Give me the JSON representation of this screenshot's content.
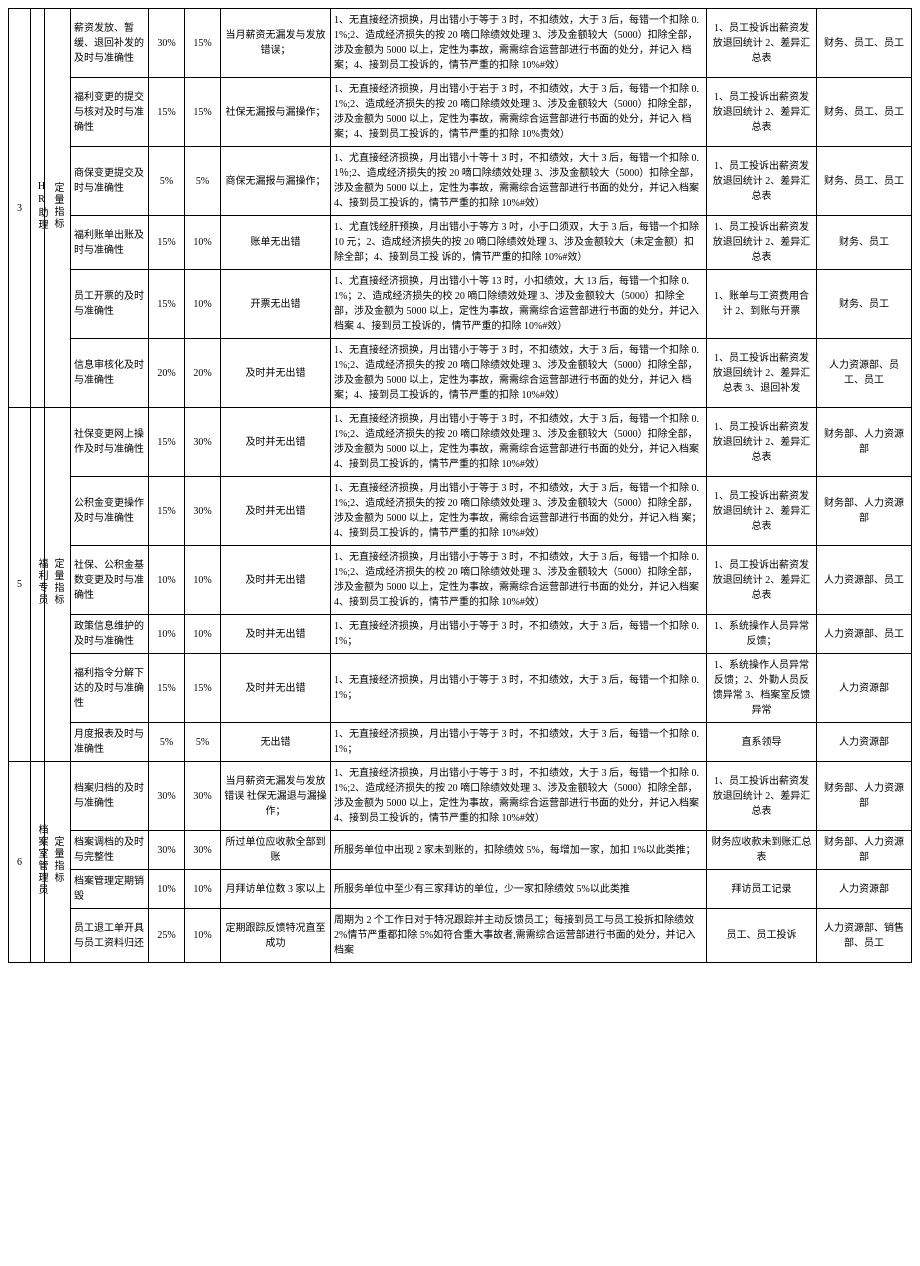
{
  "sections": [
    {
      "num": "3",
      "role": "HR助理",
      "type": "定量指标",
      "rows": [
        {
          "kpi": "薪资发放、暂缓、退回补发的及时与准确性",
          "w1": "30%",
          "w2": "15%",
          "std": "当月薪资无漏发与发放错误；",
          "rule": "1、无直接经济损换，月出错小于等于 3 时，不扣绩效，大于 3 后，每错一个扣除 0.1%;2、造成经济损失的按 20 嘀口除绩效处理 3、涉及金额较大（5000）扣除全部，涉及金额为 5000 以上，定性为事故，需需综合运营部进行书面的处分，并记入\n档案；4、接到员工投诉的，情节严重的扣除 10%#效）",
          "src": "1、员工投诉出薪资发放退回统计 2、差异汇总表",
          "dep": "财务、员工、员工"
        },
        {
          "kpi": "福利变更的提交与核对及时与准确性",
          "w1": "15%",
          "w2": "15%",
          "std": "社保无漏报与漏操作；",
          "rule": "1、无直接经济损换，月出错小于岩于 3 时，不扣绩效，大于 3 后，每错一个扣除 0.1%;2、造成经济损失的按 20 嘀口除绩效处理 3、涉及金额较大（5000）扣除全部，涉及金额为 5000 以上，定性为事故，需需综合运营部进行书面的处分，并记入\n档案；4、接到员工投诉的，情节严重的扣除 10%责效）",
          "src": "1、员工投诉出薪资发放退回统计 2、差异汇总表",
          "dep": "财务、员工、员工"
        },
        {
          "kpi": "商保变更提交及时与准确性",
          "w1": "5%",
          "w2": "5%",
          "std": "商保无漏报与漏操作；",
          "rule": "1、尤直接经济损换，月出错小十等十 3 时，不扣绩效，大十 3 后，每错一个扣除 0.1％;2、造成经济损失的按 20 嘀口除绩效处理 3、涉及金额较大（5000）扣除全部，涉及金额为 5000 以上，定性为事故，需需综合运营部进行书面的处分，并记入档案 4、接到员工投诉的，情节严重的扣除 10%#效）",
          "src": "1、员工投诉出薪资发放退回统计 2、差异汇总表",
          "dep": "财务、员工、员工"
        },
        {
          "kpi": "福利账单出账及时与准确性",
          "w1": "15%",
          "w2": "10%",
          "std": "账单无出错",
          "rule": "1、尤直饯经肝预换，月出错小于等方 3 吋，小于口须双，大于 3 后，每错一个扣除 10 元；2、造成经济损失的按 20 嘀口除绩效处理 3、涉及金额较大（未定金额）扣除全部；4、接到员工投\n诉的，情节严重的扣除 10%#效）",
          "src": "1、员工投诉出薪资发放退回统计 2、差异汇总表",
          "dep": "财务、员工"
        },
        {
          "kpi": "员工开票的及时与准确性",
          "w1": "15%",
          "w2": "10%",
          "std": "开票无出错",
          "rule": "1、尤直接经济损换，月出错小十等 13 时，小扣绩效，大 13 后，每错一个扣除 0.1%；2、造成经济损失的校 20 嘀口除绩效处理 3、涉及金额较大（5000）扣除全部，涉及金额为 5000 以上，定性为事故，需需综合运营部进行书面的处分，并记入档案 4、接到员工投诉的，情节严重的扣除 10%#效）",
          "src": "1、账单与工资费用合计 2、到账与开票",
          "dep": "财务、员工"
        },
        {
          "kpi": "信息审核化及时与准确性",
          "w1": "20%",
          "w2": "20%",
          "std": "及时并无出错",
          "rule": "1、无直接经济损换，月出错小于等于 3 时，不扣绩效，大于 3 后，每错一个扣除 0.1%;2、造成经济损失的按 20 嘀口除绩效处理 3、涉及金额较大（5000）扣除全部，涉及金额为 5000 以上，定性为事故，需需综合运营部进行书面的处分，并记入\n档案；4、接到员工投诉的，情节严重的扣除 10%#效）",
          "src": "1、员工投诉出薪资发放退回统计 2、差异汇总表\n3、退回补发",
          "dep": "人力资源部、员工、员工"
        }
      ]
    },
    {
      "num": "5",
      "role": "福利专员",
      "type": "定量指标",
      "rows": [
        {
          "kpi": "社保变更网上操作及时与准确性",
          "w1": "15%",
          "w2": "30%",
          "std": "及时并无出错",
          "rule": "1、无直接经济损换，月出错小于等于 3 时，不扣绩效，大于 3 后，每错一个扣除 0.1%;2、造成经济损失的按 20 嘀口除绩效处理 3、涉及金额较大（5000）扣除全部，涉及金额为 5000 以上，定性为事故，需需综合运营部进行书面的处分，并记入档案 4、接到员工投诉的，情节严重的扣除 10%#效）",
          "src": "1、员工投诉出薪资发放退回统计 2、差异汇总表",
          "dep": "财务部、人力资源部"
        },
        {
          "kpi": "公积金变更操作及时与准确性",
          "w1": "15%",
          "w2": "30%",
          "std": "及时并无出错",
          "rule": "1、无直接经济损换，月出错小于等于 3 时，不扣绩效，大于 3 后，每错一个扣除 0.1%;2、造成经济损失的按 20 嘀口除绩效处理 3、涉及金额较大（5000）扣除全部，涉及金额为 5000 以上，定性为事故，需综合运营部进行书面的处分，并记入档\n案；4、接到员工投诉的，情节严重的扣除 10%#效）",
          "src": "1、员工投诉出薪资发放退回统计 2、差异汇总表",
          "dep": "财务部、人力资源部"
        },
        {
          "kpi": "社保、公积金基数变更及时与准确性",
          "w1": "10%",
          "w2": "10%",
          "std": "及时并无出错",
          "rule": "1、无直接经济损换，月出错小于等于 3 时，不扣绩效，大于 3 后，每错一个扣除 0.1%;2、造成经济损失的校 20 嘀口除绩效处理 3、涉及金额较大（5000）扣除全部，涉及金额为 5000 以上，定性为事故，需需综合运营部进行书面的处分，并记入档案 4、接到员工投诉的，情节严重的扣除 10%#效）",
          "src": "1、员工投诉出薪资发放退回统计 2、差异汇总表",
          "dep": "人力资源部、员工"
        },
        {
          "kpi": "政策信息维护的及时与准确性",
          "w1": "10%",
          "w2": "10%",
          "std": "及时并无出错",
          "rule": "1、无直接经济损换，月出错小于等于 3 时，不扣绩效，大于 3 后，每错一个扣除 0.1%；",
          "src": "1、系统操作人员异常反馈；",
          "dep": "人力资源部、员工"
        },
        {
          "kpi": "福利指令分解下达的及时与准确性",
          "w1": "15%",
          "w2": "15%",
          "std": "及时并无出错",
          "rule": "1、无直接经济损换，月出错小于等于 3 时，不扣绩效，大于 3 后，每错一个扣除 0.1%；",
          "src": "1、系统操作人员异常反馈；2、外勤人员反馈异常 3、档案室反馈异常",
          "dep": "人力资源部"
        },
        {
          "kpi": "月度报表及时与准确性",
          "w1": "5%",
          "w2": "5%",
          "std": "无出错",
          "rule": "1、无直接经济损换，月出错小于等于 3 时，不扣绩效，大于 3 后，每错一个扣除 0.1%；",
          "src": "直系领导",
          "dep": "人力资源部"
        }
      ]
    },
    {
      "num": "6",
      "role": "档案室管理员",
      "type": "定量指标",
      "rows": [
        {
          "kpi": "档案归档的及时与准确性",
          "w1": "30%",
          "w2": "30%",
          "std": "当月薪资无漏发与发放错误 社保无漏退与漏操作；",
          "rule": "1、无直接经济损换，月出错小于等于 3 时，不扣绩效，大于 3 后，每错一个扣除 0.1%;2、造成经济损失的按 20 嘀口除绩效处理 3、涉及金额较大（5000）扣除全部，涉及金额为 5000 以上，定性为事故，需需综合运营部进行书面的处分，并记入档案 4、接到员工投诉的，情节严重的扣除 10%#效）",
          "src": "1、员工投诉出薪资发放退回统计 2、差异汇总表",
          "dep": "财务部、人力资源部"
        },
        {
          "kpi": "档案调档的及时与完整性",
          "w1": "30%",
          "w2": "30%",
          "std": "所过单位应收款全部到账",
          "rule": "所服务单位中出现 2 家未到账的，扣除绩效 5%，每增加一家，加扣 1%以此类推；",
          "src": "财务应收款未到账汇总表",
          "dep": "财务部、人力资源部"
        },
        {
          "kpi": "档案管理定期销毁",
          "w1": "10%",
          "w2": "10%",
          "std": "月拜访单位数 3 家以上",
          "rule": "所服务单位中至少有三家拜访的单位，少一家扣除绩效 5%以此类推",
          "src": "拜访员工记录",
          "dep": "人力资源部"
        },
        {
          "kpi": "员工退工单开具与员工资料归还",
          "w1": "25%",
          "w2": "10%",
          "std": "定期跟踪反馈特况直至成功",
          "rule": "周期为 2 个工作日对于特况跟踪并主动反馈员工；每接到员工与员工投拆扣除绩效 2%情节严重都扣除 5%如符合重大事故者,需需综合运营部进行书面的处分，并记入档案",
          "src": "员工、员工投诉",
          "dep": "人力资源部、销售部、员工"
        }
      ]
    }
  ]
}
